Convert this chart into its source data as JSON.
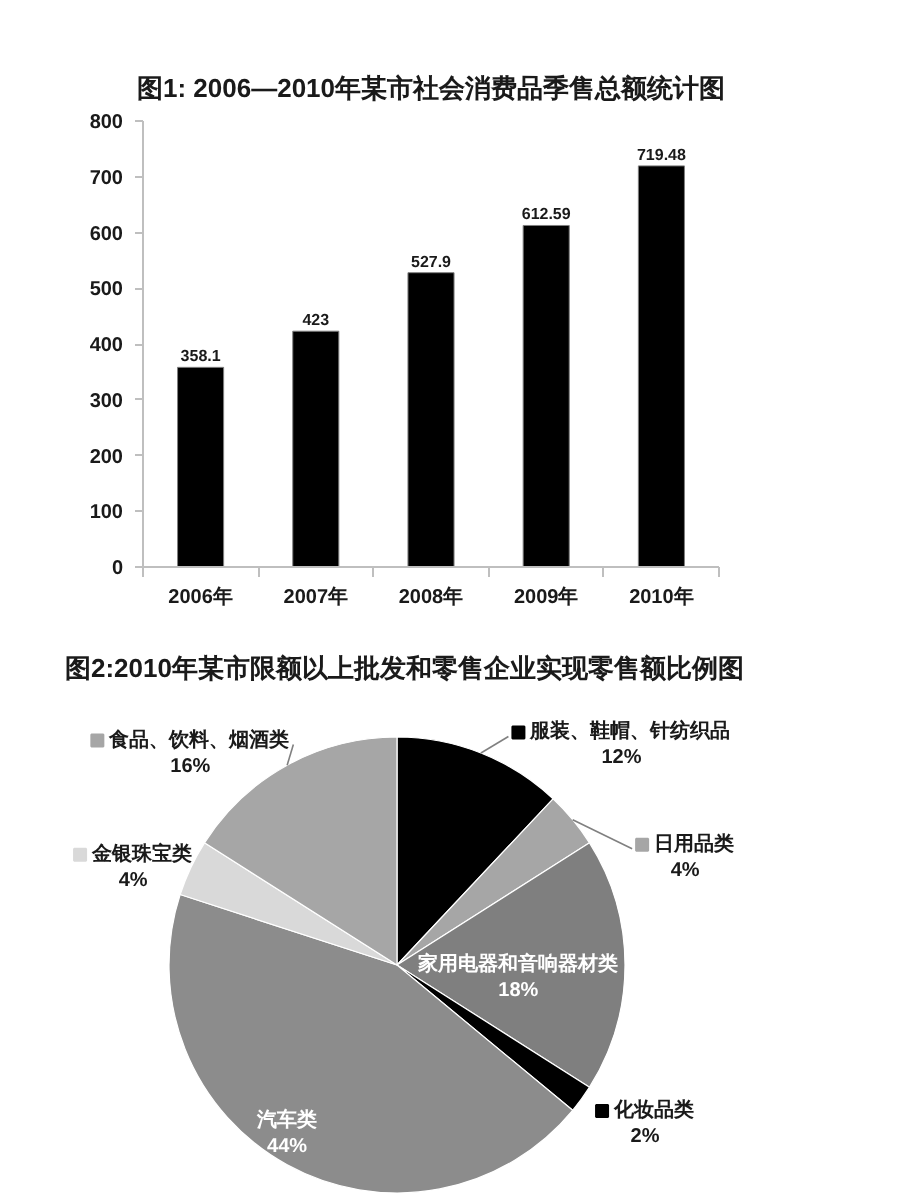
{
  "chart_data": [
    {
      "type": "bar",
      "title": "图1: 2006—2010年某市社会消费品季售总额统计图",
      "categories": [
        "2006年",
        "2007年",
        "2008年",
        "2009年",
        "2010年"
      ],
      "values": [
        358.1,
        423,
        527.9,
        612.59,
        719.48
      ],
      "color": "#000000",
      "ylim": [
        0,
        800
      ],
      "yticks": [
        0,
        100,
        200,
        300,
        400,
        500,
        600,
        700,
        800
      ],
      "data_labels": true
    },
    {
      "type": "pie",
      "title": "图2:2010年某市限额以上批发和零售企业实现零售额比例图",
      "categories": [
        "服装、鞋帽、针纺织品",
        "日用品类",
        "家用电器和音响器材类",
        "化妆品类",
        "汽车类",
        "金银珠宝类",
        "食品、饮料、烟酒类"
      ],
      "values": [
        12,
        4,
        18,
        2,
        44,
        4,
        16
      ],
      "colors": [
        "#000000",
        "#a6a6a6",
        "#7f7f7f",
        "#000000",
        "#8c8c8c",
        "#d9d9d9",
        "#a6a6a6"
      ],
      "value_labels": [
        "12%",
        "4%",
        "18%",
        "2%",
        "44%",
        "4%",
        "16%"
      ],
      "legend": true
    }
  ]
}
